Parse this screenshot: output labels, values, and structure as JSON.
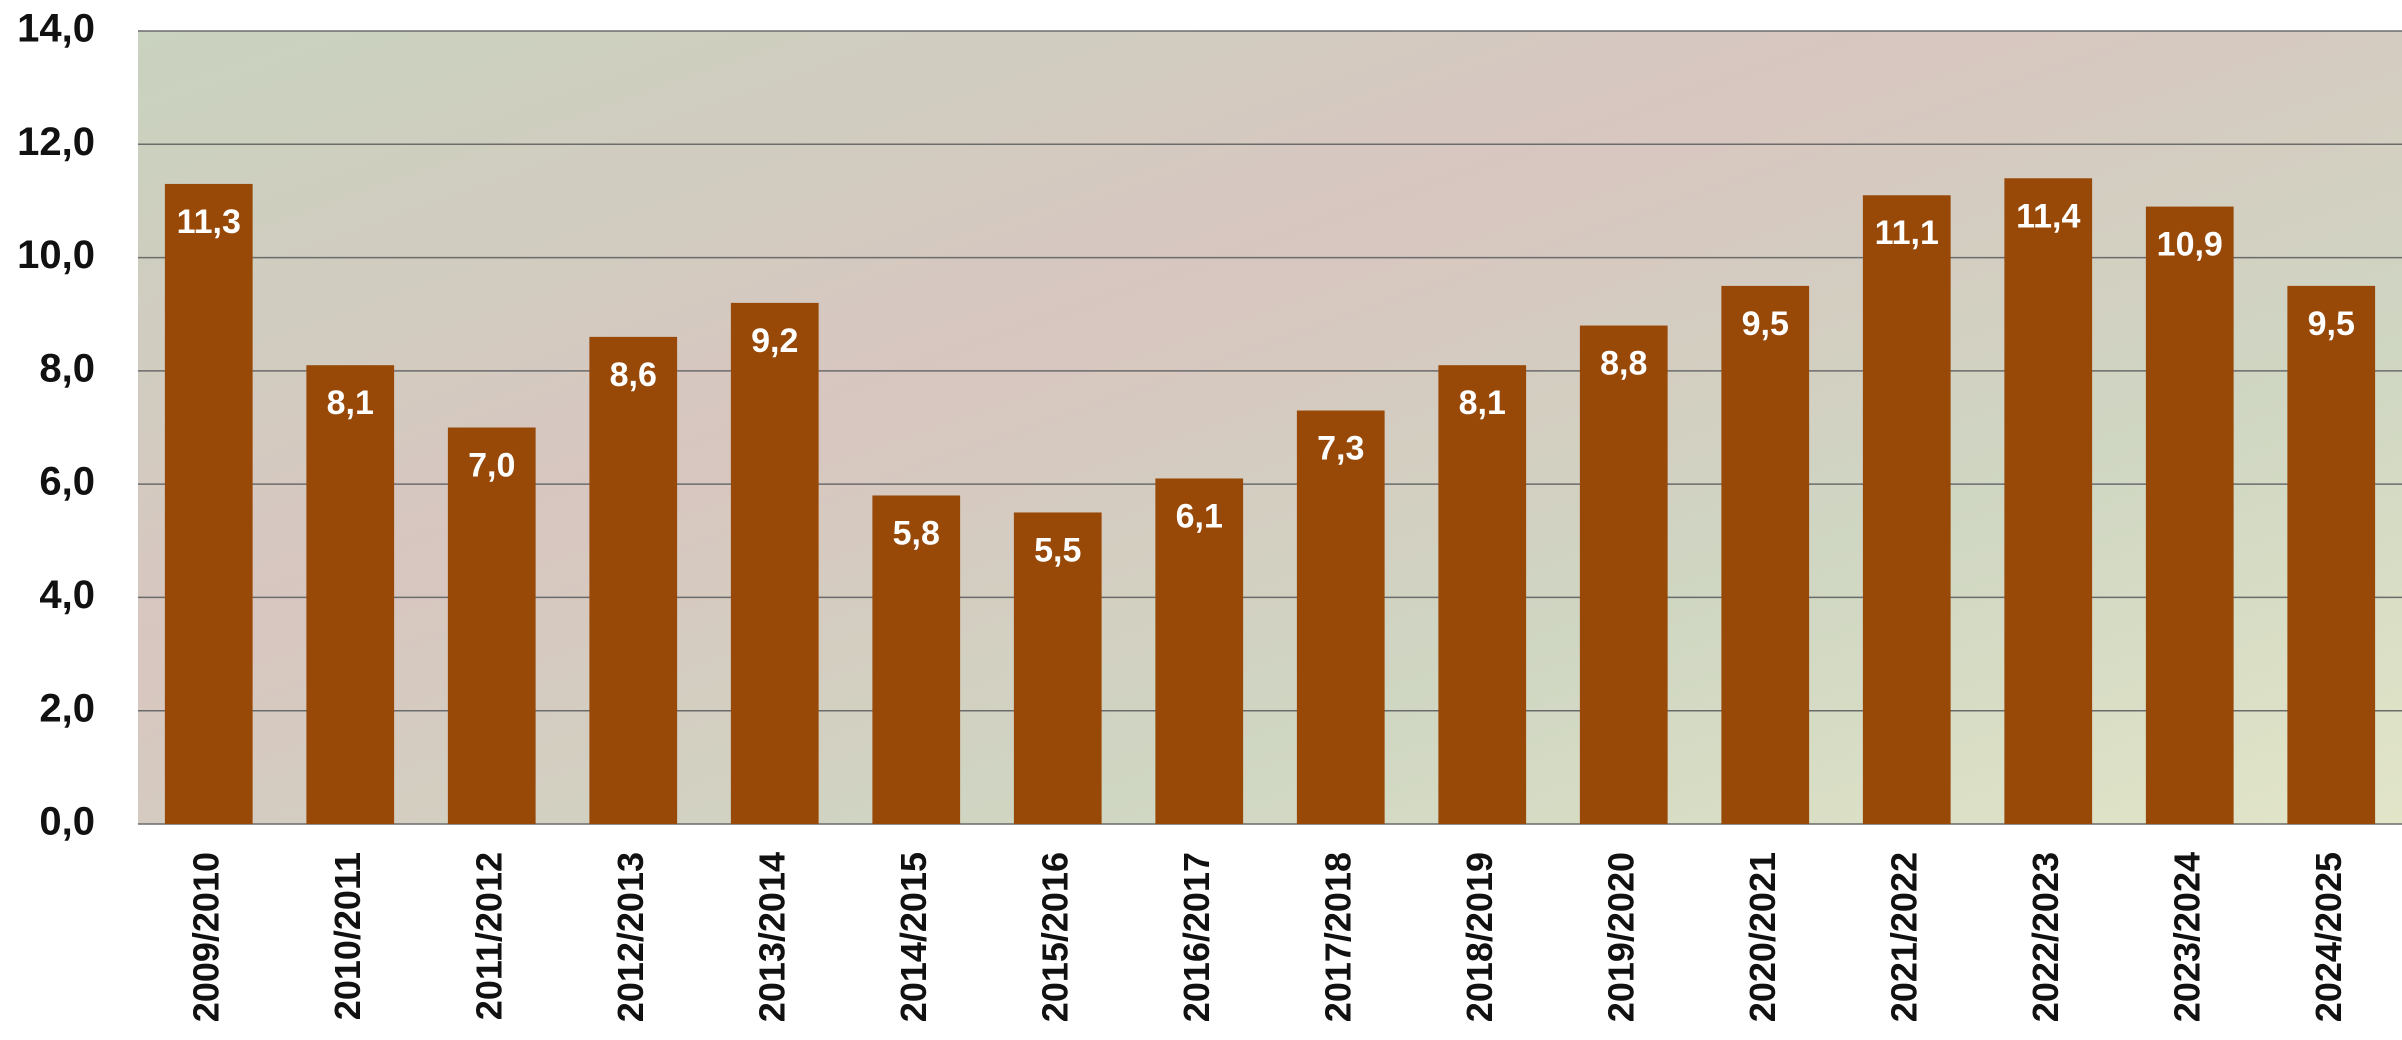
{
  "chart_data": {
    "type": "bar",
    "categories": [
      "2009/2010",
      "2010/2011",
      "2011/2012",
      "2012/2013",
      "2013/2014",
      "2014/2015",
      "2015/2016",
      "2016/2017",
      "2017/2018",
      "2018/2019",
      "2019/2020",
      "2020/2021",
      "2021/2022",
      "2022/2023",
      "2023/2024",
      "2024/2025"
    ],
    "values": [
      11.3,
      8.1,
      7.0,
      8.6,
      9.2,
      5.8,
      5.5,
      6.1,
      7.3,
      8.1,
      8.8,
      9.5,
      11.1,
      11.4,
      10.9,
      9.5
    ],
    "value_labels": [
      "11,3",
      "8,1",
      "7,0",
      "8,6",
      "9,2",
      "5,8",
      "5,5",
      "6,1",
      "7,3",
      "8,1",
      "8,8",
      "9,5",
      "11,1",
      "11,4",
      "10,9",
      "9,5"
    ],
    "color": "#984807",
    "ylim": [
      0,
      14
    ],
    "yticks": [
      {
        "value": 0,
        "label": "0,0"
      },
      {
        "value": 2,
        "label": "2,0"
      },
      {
        "value": 4,
        "label": "4,0"
      },
      {
        "value": 6,
        "label": "6,0"
      },
      {
        "value": 8,
        "label": "8,0"
      },
      {
        "value": 10,
        "label": "10,0"
      },
      {
        "value": 12,
        "label": "12,0"
      },
      {
        "value": 14,
        "label": "14,0"
      }
    ],
    "grid": true
  }
}
